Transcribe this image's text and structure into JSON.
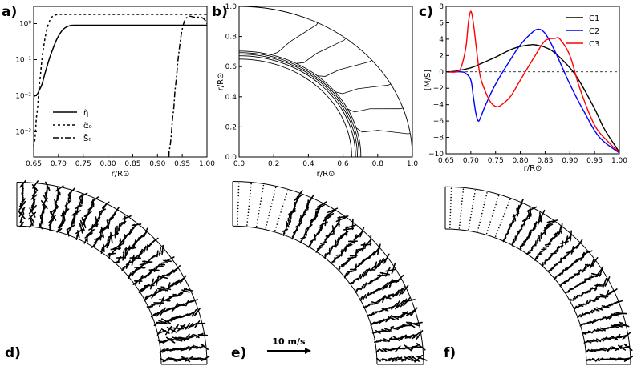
{
  "chart_data": [
    {
      "panel": "a)",
      "type": "line",
      "xlabel": "r/R⊙",
      "xlim": [
        0.65,
        1.0
      ],
      "xticks": [
        "0.65",
        "0.70",
        "0.75",
        "0.80",
        "0.85",
        "0.90",
        "0.95",
        "1.00"
      ],
      "yscale": "log",
      "ylim": [
        0.0002,
        3
      ],
      "yticks": [
        {
          "label": "10⁻³",
          "v": 0.001
        },
        {
          "label": "10⁻²",
          "v": 0.01
        },
        {
          "label": "10⁻¹",
          "v": 0.1
        },
        {
          "label": "10⁰",
          "v": 1
        }
      ],
      "legend": [
        "η̃",
        "α̃₀",
        "S̃₀"
      ],
      "series": [
        {
          "name": "η̃",
          "style": "solid",
          "x": [
            0.65,
            0.66,
            0.67,
            0.68,
            0.69,
            0.7,
            0.71,
            0.72,
            0.73,
            0.75,
            0.8,
            0.85,
            0.9,
            0.95,
            1.0
          ],
          "y": [
            0.0095,
            0.013,
            0.03,
            0.09,
            0.22,
            0.45,
            0.7,
            0.85,
            0.9,
            0.9,
            0.9,
            0.9,
            0.9,
            0.9,
            0.9
          ]
        },
        {
          "name": "α̃₀",
          "style": "dashed",
          "x": [
            0.65,
            0.655,
            0.66,
            0.665,
            0.67,
            0.675,
            0.68,
            0.685,
            0.69,
            0.7,
            0.71,
            0.75,
            0.8,
            0.85,
            0.9,
            0.95,
            1.0
          ],
          "y": [
            0.0004,
            0.002,
            0.012,
            0.06,
            0.22,
            0.55,
            1.0,
            1.4,
            1.65,
            1.8,
            1.8,
            1.8,
            1.8,
            1.8,
            1.8,
            1.8,
            1.8
          ]
        },
        {
          "name": "S̃₀",
          "style": "dashdot",
          "x": [
            0.923,
            0.93,
            0.935,
            0.94,
            0.945,
            0.95,
            0.955,
            0.96,
            0.965,
            0.97,
            0.975,
            0.98,
            0.985,
            0.99,
            0.995,
            1.0
          ],
          "y": [
            0.0002,
            0.002,
            0.012,
            0.06,
            0.25,
            0.7,
            1.2,
            1.5,
            1.6,
            1.55,
            1.5,
            1.5,
            1.5,
            1.45,
            1.3,
            1.0
          ]
        }
      ]
    },
    {
      "panel": "b)",
      "type": "line",
      "xlabel": "r/R⊙",
      "ylabel": "r/R⊙",
      "xlim": [
        0.0,
        1.0
      ],
      "ylim": [
        0.0,
        1.0
      ],
      "xticks": [
        "0.0",
        "0.2",
        "0.4",
        "0.6",
        "0.8",
        "1.0"
      ],
      "yticks": [
        "0.0",
        "0.2",
        "0.4",
        "0.6",
        "0.8",
        "1.0"
      ],
      "description_series": "contour lines in meridional quadrant",
      "shells_r": [
        0.65,
        0.672,
        0.683,
        0.693,
        0.703,
        1.0
      ],
      "contours": [
        {
          "r_in": 0.703,
          "theta_in": 15,
          "r_out": 0.985,
          "theta_out": 27
        },
        {
          "r_in": 0.703,
          "theta_in": 28,
          "r_out": 0.985,
          "theta_out": 38
        },
        {
          "r_in": 0.703,
          "theta_in": 40,
          "r_out": 0.985,
          "theta_out": 50
        },
        {
          "r_in": 0.703,
          "theta_in": 52,
          "r_out": 0.985,
          "theta_out": 61
        },
        {
          "r_in": 0.703,
          "theta_in": 63,
          "r_out": 0.985,
          "theta_out": 71
        },
        {
          "r_in": 0.703,
          "theta_in": 74,
          "r_out": 0.985,
          "theta_out": 81
        }
      ]
    },
    {
      "panel": "c)",
      "type": "line",
      "xlabel": "r/R⊙",
      "ylabel": "[M/S]",
      "xlim": [
        0.65,
        1.0
      ],
      "ylim": [
        -10,
        8
      ],
      "xticks": [
        "0.65",
        "0.70",
        "0.75",
        "0.80",
        "0.85",
        "0.90",
        "0.95",
        "1.00"
      ],
      "yticks": [
        "−10",
        "−8",
        "−6",
        "−4",
        "−2",
        "0",
        "2",
        "4",
        "6",
        "8"
      ],
      "zero_line": true,
      "series": [
        {
          "name": "C1",
          "color": "#000000",
          "x": [
            0.65,
            0.67,
            0.7,
            0.72,
            0.75,
            0.78,
            0.8,
            0.82,
            0.83,
            0.85,
            0.87,
            0.9,
            0.92,
            0.95,
            0.97,
            1.0
          ],
          "y": [
            0,
            0.1,
            0.5,
            1.0,
            1.8,
            2.7,
            3.1,
            3.3,
            3.3,
            3.0,
            2.3,
            0.5,
            -1.2,
            -4.5,
            -7.0,
            -9.8
          ]
        },
        {
          "name": "C2",
          "color": "#0000ff",
          "x": [
            0.65,
            0.68,
            0.69,
            0.7,
            0.705,
            0.71,
            0.715,
            0.72,
            0.73,
            0.75,
            0.78,
            0.8,
            0.82,
            0.835,
            0.85,
            0.87,
            0.9,
            0.93,
            0.96,
            1.0
          ],
          "y": [
            0,
            0,
            -0.2,
            -1.0,
            -3.0,
            -5.0,
            -6.0,
            -5.5,
            -4.0,
            -1.5,
            1.5,
            3.3,
            4.6,
            5.2,
            4.7,
            2.5,
            -1.5,
            -5.0,
            -8.0,
            -9.9
          ]
        },
        {
          "name": "C3",
          "color": "#ff0000",
          "x": [
            0.65,
            0.67,
            0.68,
            0.69,
            0.695,
            0.7,
            0.705,
            0.71,
            0.715,
            0.72,
            0.73,
            0.74,
            0.75,
            0.76,
            0.78,
            0.8,
            0.83,
            0.85,
            0.87,
            0.88,
            0.9,
            0.92,
            0.95,
            0.98,
            1.0
          ],
          "y": [
            0,
            0,
            0.5,
            3.0,
            6.0,
            7.4,
            6.0,
            3.5,
            1.0,
            -0.8,
            -2.5,
            -3.7,
            -4.2,
            -4.1,
            -3.0,
            -1.0,
            2.0,
            3.8,
            4.1,
            4.0,
            2.0,
            -2.0,
            -6.5,
            -8.7,
            -9.8
          ]
        }
      ]
    },
    {
      "panel": "d)",
      "type": "vector-field",
      "description_series": "meridional velocity arrows in quadrant (0.65-1.0 R⊙)"
    },
    {
      "panel": "e)",
      "type": "vector-field",
      "description_series": "meridional velocity arrows in quadrant"
    },
    {
      "panel": "f)",
      "type": "vector-field",
      "description_series": "meridional velocity arrows in quadrant"
    }
  ],
  "scale_label": "10 m/s",
  "panel_labels": [
    "a)",
    "b)",
    "c)",
    "d)",
    "e)",
    "f)"
  ]
}
